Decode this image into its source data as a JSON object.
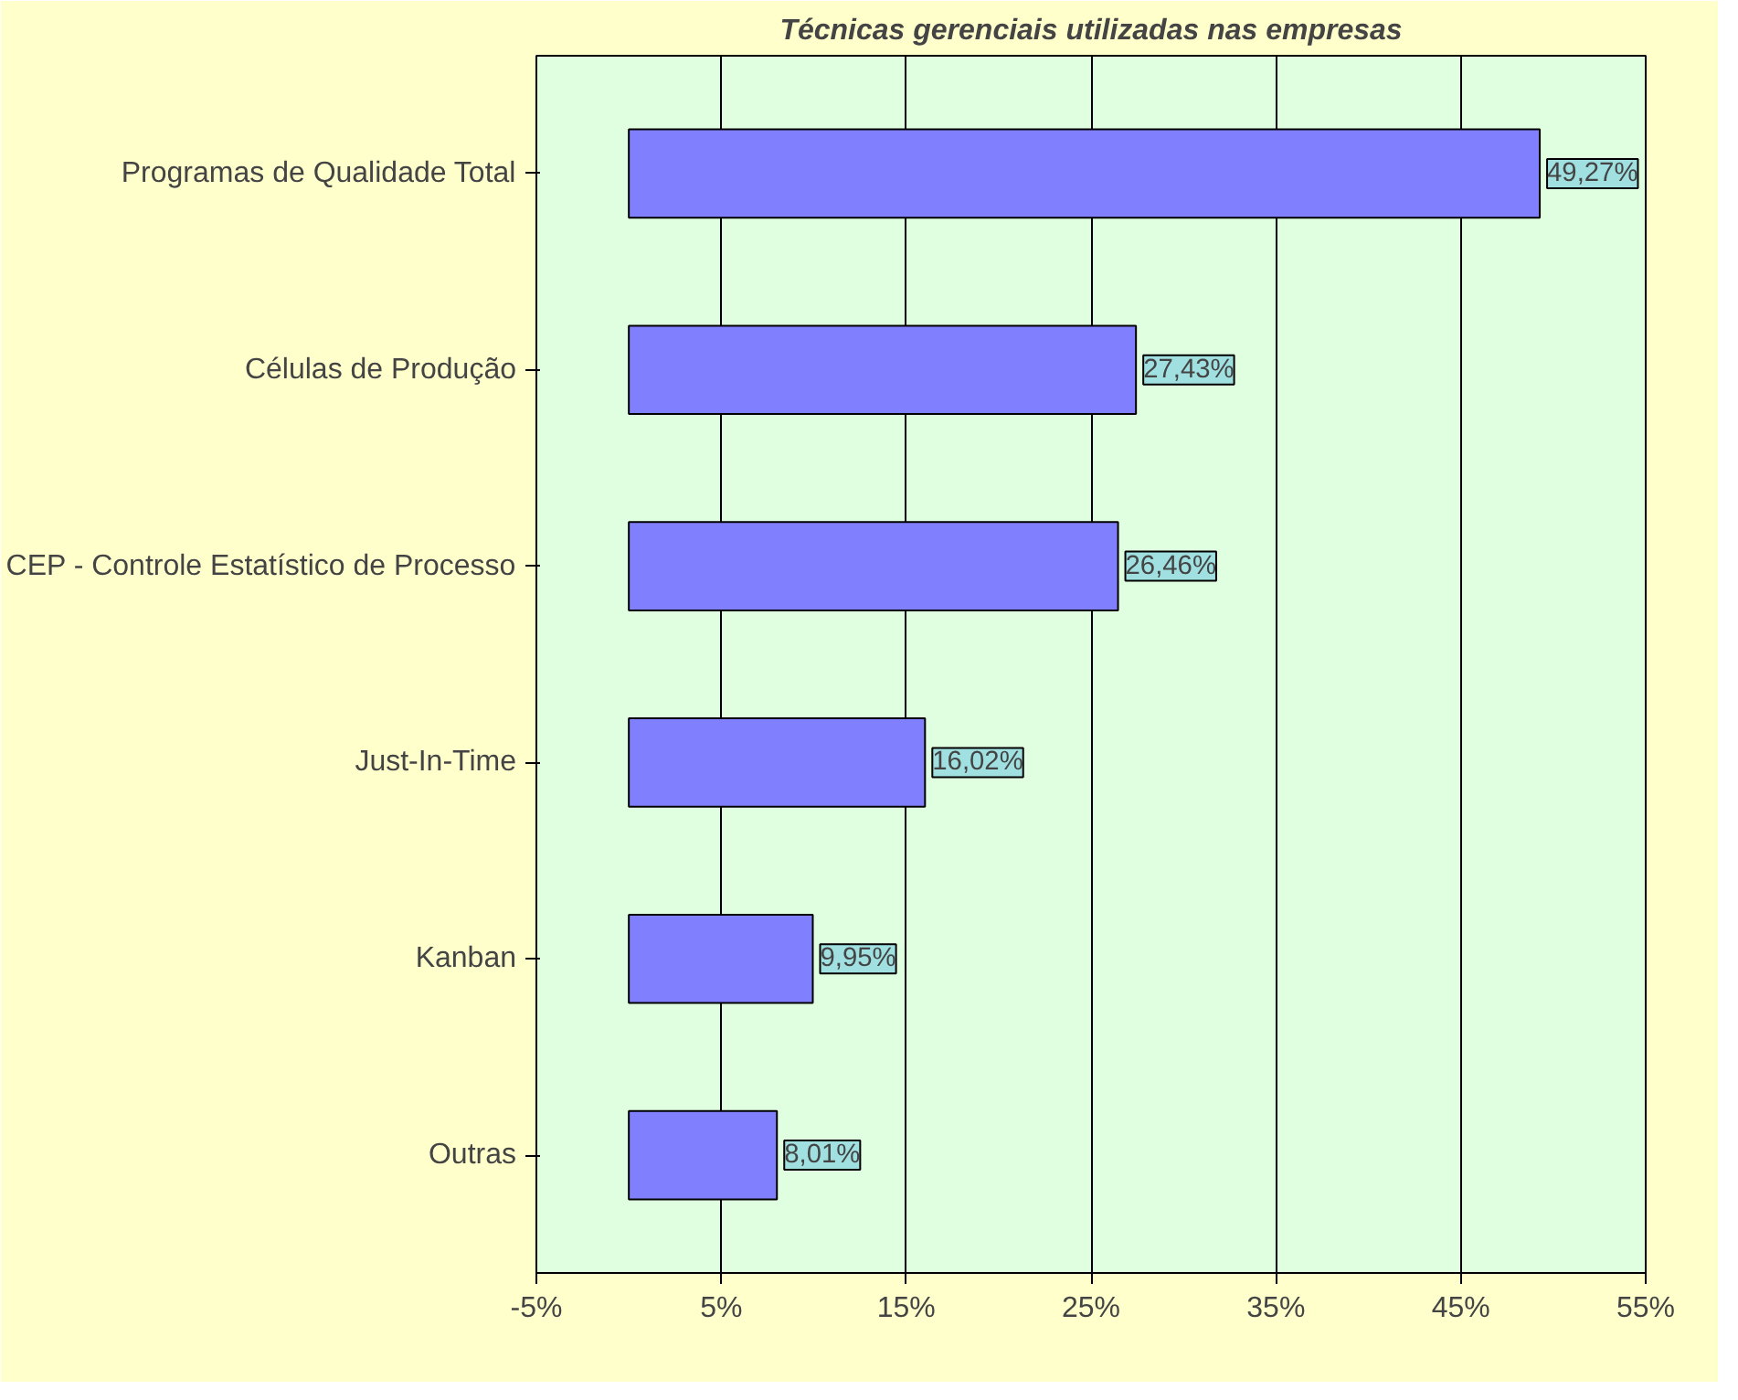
{
  "chart_data": {
    "type": "bar",
    "orientation": "horizontal",
    "title": "Técnicas gerenciais utilizadas nas empresas",
    "categories": [
      "Programas de Qualidade Total",
      "Células de Produção",
      "CEP - Controle Estatístico de Processo",
      "Just-In-Time",
      "Kanban",
      "Outras"
    ],
    "values": [
      49.27,
      27.43,
      26.46,
      16.02,
      9.95,
      8.01
    ],
    "value_labels": [
      "49,27%",
      "27,43%",
      "26,46%",
      "16,02%",
      "9,95%",
      "8,01%"
    ],
    "color": "#8080ff",
    "xlim": [
      -5,
      55
    ],
    "xticks": [
      {
        "value": -5,
        "label": "-5%"
      },
      {
        "value": 5,
        "label": "5%"
      },
      {
        "value": 15,
        "label": "15%"
      },
      {
        "value": 25,
        "label": "25%"
      },
      {
        "value": 35,
        "label": "35%"
      },
      {
        "value": 45,
        "label": "45%"
      },
      {
        "value": 55,
        "label": "55%"
      }
    ],
    "grid": "x"
  }
}
